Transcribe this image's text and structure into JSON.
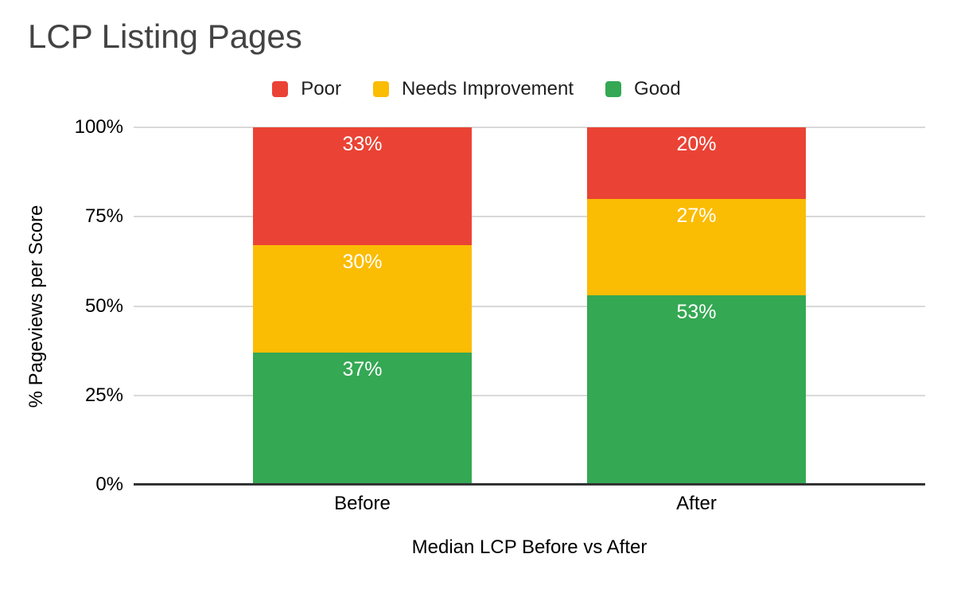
{
  "colors": {
    "background": "#FFFFFF",
    "grid": "#D9D9D9",
    "baseline": "#333333",
    "title_text": "#434343",
    "axis_text": "#000000",
    "legend_text": "#1F1F1F",
    "bar_label_text": "#FFFFFF",
    "poor": "#EA4335",
    "needs_improvement": "#FBBC04",
    "good": "#34A853"
  },
  "chart_data": {
    "type": "bar",
    "stacked": true,
    "title": "LCP Listing Pages",
    "categories": [
      "Before",
      "After"
    ],
    "series": [
      {
        "name": "Poor",
        "color": "#EA4335",
        "values": [
          33,
          20
        ]
      },
      {
        "name": "Needs Improvement",
        "color": "#FBBC04",
        "values": [
          30,
          27
        ]
      },
      {
        "name": "Good",
        "color": "#34A853",
        "values": [
          37,
          53
        ]
      }
    ],
    "value_suffix": "%",
    "xlabel": "Median LCP Before vs After",
    "ylabel": "% Pageviews per Score",
    "ylim": [
      0,
      100
    ],
    "yticks": [
      "0%",
      "25%",
      "50%",
      "75%",
      "100%"
    ],
    "grid": true,
    "legend_position": "top",
    "bar_label_position": "inside-top"
  }
}
